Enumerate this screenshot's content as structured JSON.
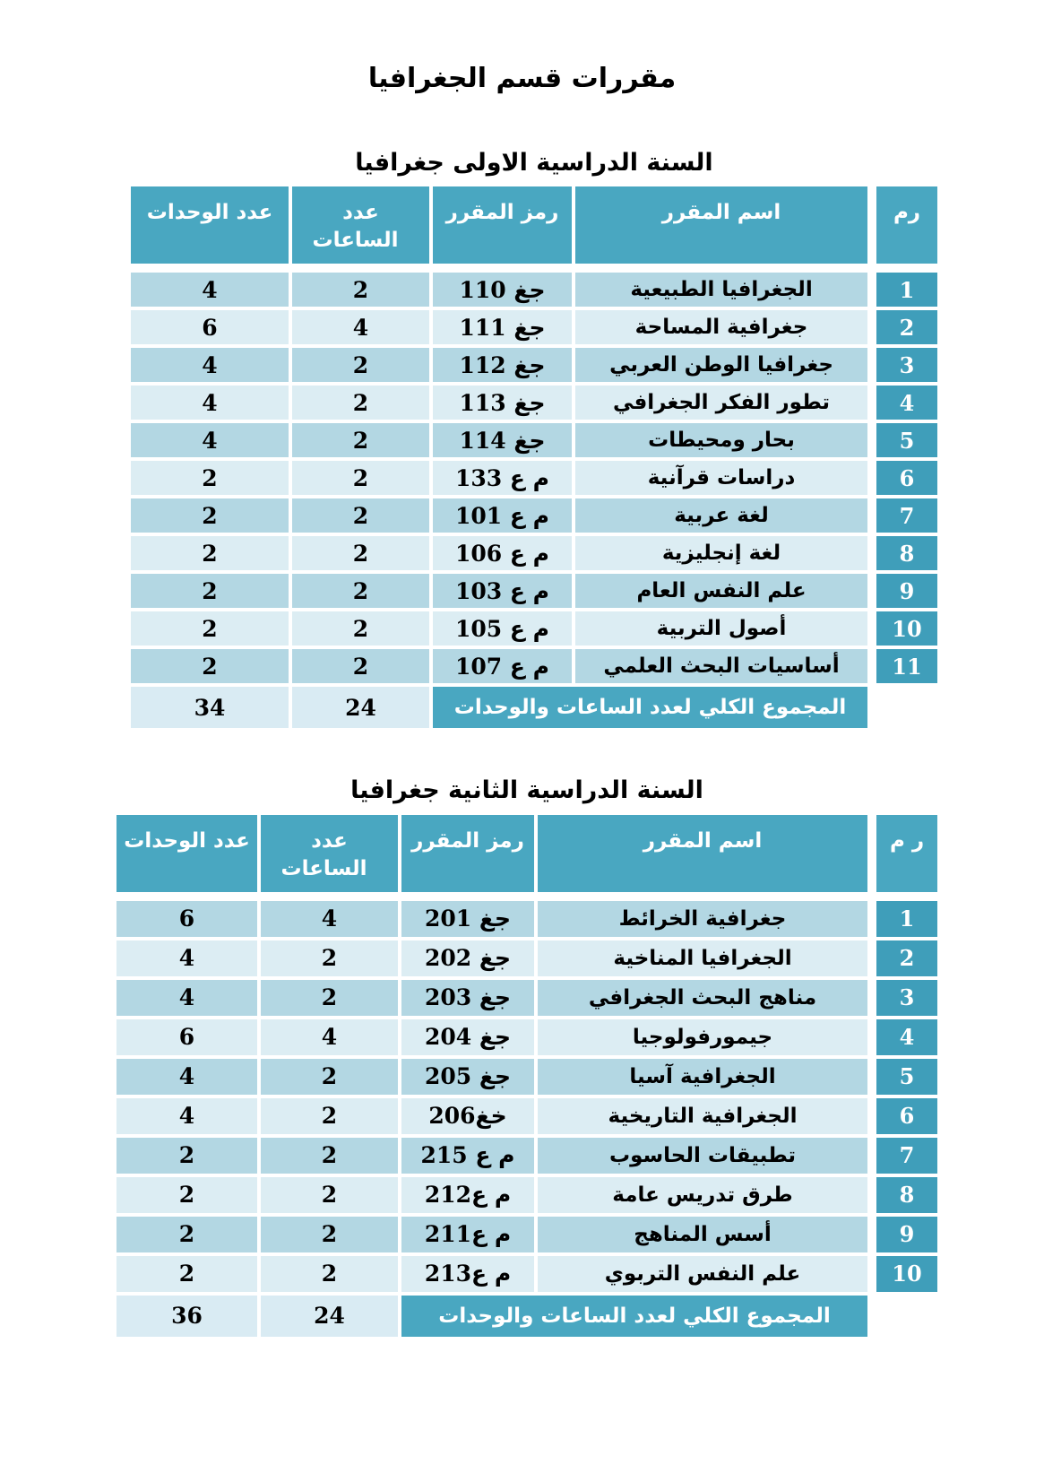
{
  "page": {
    "title": "مقررات قسم الجغرافيا"
  },
  "colors": {
    "header_teal": "#49A7C1",
    "serial_teal": "#3F9EBA",
    "row_dark": "#B3D7E3",
    "row_light": "#DCEDF3",
    "total_numbers_bg": "#D9EBF3",
    "header_text": "#ffffff",
    "body_text": "#000000"
  },
  "tables": [
    {
      "subtitle": "السنة الدراسية الاولى جغرافيا",
      "headers": {
        "serial": "رم",
        "name": "اسم المقرر",
        "code": "رمز المقرر",
        "hours": "عدد الساعات",
        "units": "عدد الوحدات"
      },
      "rows": [
        {
          "serial": "1",
          "name": "الجغرافيا الطبيعية",
          "code": "جغ 110",
          "hours": "2",
          "units": "4"
        },
        {
          "serial": "2",
          "name": "جغرافية المساحة",
          "code": "جغ 111",
          "hours": "4",
          "units": "6"
        },
        {
          "serial": "3",
          "name": "جغرافيا الوطن العربي",
          "code": "جغ 112",
          "hours": "2",
          "units": "4"
        },
        {
          "serial": "4",
          "name": "تطور الفكر الجغرافي",
          "code": "جغ 113",
          "hours": "2",
          "units": "4"
        },
        {
          "serial": "5",
          "name": "بحار ومحيطات",
          "code": "جغ 114",
          "hours": "2",
          "units": "4"
        },
        {
          "serial": "6",
          "name": "دراسات قرآنية",
          "code": "م ع 133",
          "hours": "2",
          "units": "2"
        },
        {
          "serial": "7",
          "name": "لغة عربية",
          "code": "م ع 101",
          "hours": "2",
          "units": "2"
        },
        {
          "serial": "8",
          "name": "لغة إنجليزية",
          "code": "م ع 106",
          "hours": "2",
          "units": "2"
        },
        {
          "serial": "9",
          "name": "علم النفس العام",
          "code": "م ع 103",
          "hours": "2",
          "units": "2"
        },
        {
          "serial": "10",
          "name": "أصول التربية",
          "code": "م ع 105",
          "hours": "2",
          "units": "2"
        },
        {
          "serial": "11",
          "name": "أساسيات البحث العلمي",
          "code": "م ع 107",
          "hours": "2",
          "units": "2"
        }
      ],
      "total": {
        "label": "المجموع الكلي لعدد الساعات والوحدات",
        "hours": "24",
        "units": "34"
      }
    },
    {
      "subtitle": "السنة الدراسية الثانية جغرافيا",
      "headers": {
        "serial": "ر م",
        "name": "اسم المقرر",
        "code": "رمز المقرر",
        "hours": "عدد الساعات",
        "units": "عدد الوحدات"
      },
      "rows": [
        {
          "serial": "1",
          "name": "جغرافية الخرائط",
          "code": "جغ 201",
          "hours": "4",
          "units": "6"
        },
        {
          "serial": "2",
          "name": "الجغرافيا المناخية",
          "code": "جغ 202",
          "hours": "2",
          "units": "4"
        },
        {
          "serial": "3",
          "name": "مناهج البحث الجغرافي",
          "code": "جغ 203",
          "hours": "2",
          "units": "4"
        },
        {
          "serial": "4",
          "name": "جيمورفولوجيا",
          "code": "جغ 204",
          "hours": "4",
          "units": "6"
        },
        {
          "serial": "5",
          "name": "الجغرافية آسيا",
          "code": "جغ 205",
          "hours": "2",
          "units": "4"
        },
        {
          "serial": "6",
          "name": "الجغرافية التاريخية",
          "code": "خغ206",
          "hours": "2",
          "units": "4"
        },
        {
          "serial": "7",
          "name": "تطبيقات الحاسوب",
          "code": "م ع 215",
          "hours": "2",
          "units": "2"
        },
        {
          "serial": "8",
          "name": "طرق تدريس عامة",
          "code": "م ع212",
          "hours": "2",
          "units": "2"
        },
        {
          "serial": "9",
          "name": "أسس المناهج",
          "code": "م ع211",
          "hours": "2",
          "units": "2"
        },
        {
          "serial": "10",
          "name": "علم النفس التربوي",
          "code": "م ع213",
          "hours": "2",
          "units": "2"
        }
      ],
      "total": {
        "label": "المجموع الكلي لعدد الساعات والوحدات",
        "hours": "24",
        "units": "36"
      }
    }
  ]
}
